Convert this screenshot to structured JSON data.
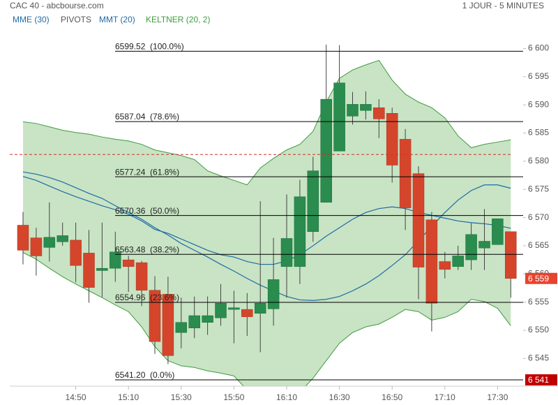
{
  "header": {
    "title": "CAC 40 - abcbourse.com",
    "period": "1 JOUR - 5 MINUTES"
  },
  "chart_data": {
    "type": "candlestick",
    "categories": [
      null,
      null,
      null,
      null,
      "14:50",
      null,
      null,
      null,
      "15:10",
      null,
      null,
      null,
      "15:30",
      null,
      null,
      null,
      "15:50",
      null,
      null,
      null,
      "16:10",
      null,
      null,
      null,
      "16:30",
      null,
      null,
      null,
      "16:50",
      null,
      null,
      null,
      "17:10",
      null,
      null,
      null,
      "17:30",
      null
    ],
    "ohlc": {
      "open": [
        6568.65,
        6566.4,
        6564.7,
        6565.7,
        6566.0,
        6563.7,
        6560.6,
        6561.0,
        6562.5,
        6562.0,
        6557.1,
        6556.4,
        6549.6,
        6550.4,
        6551.4,
        6552.2,
        6553.7,
        6553.7,
        6553.0,
        6553.8,
        6561.3,
        6561.3,
        6567.5,
        6572.7,
        6581.8,
        6588.0,
        6589.0,
        6589.5,
        6588.5,
        6583.9,
        6577.8,
        6569.6,
        6562.2,
        6561.3,
        6562.5,
        6564.6,
        6565.2,
        6567.5
      ],
      "high": [
        6571.0,
        6568.2,
        6572.7,
        6569.1,
        6569.1,
        6567.8,
        6569.1,
        6567.5,
        6563.2,
        6562.3,
        6559.6,
        6559.5,
        6555.8,
        6556.0,
        6556.0,
        6558.2,
        6557.0,
        6556.6,
        6572.9,
        6566.4,
        6574.1,
        6576.7,
        6580.8,
        6600.7,
        6600.6,
        6592.3,
        6592.4,
        6591.0,
        6589.5,
        6585.7,
        6579.1,
        6571.0,
        6563.9,
        6565.0,
        6569.0,
        6571.5,
        6569.8,
        6567.5
      ],
      "low": [
        6561.7,
        6559.7,
        6562.2,
        6565.0,
        6558.5,
        6554.9,
        6555.9,
        6558.6,
        6556.8,
        6554.3,
        6545.8,
        6544.0,
        6546.8,
        6548.6,
        6549.2,
        6550.8,
        6547.7,
        6549.0,
        6546.1,
        6550.8,
        6555.8,
        6558.2,
        6565.7,
        6572.7,
        6581.8,
        6586.5,
        6587.4,
        6584.1,
        6576.2,
        6567.8,
        6555.5,
        6549.8,
        6559.2,
        6560.7,
        6560.7,
        6560.7,
        6565.2,
        6555.8
      ],
      "close": [
        6564.2,
        6563.2,
        6566.5,
        6566.8,
        6561.5,
        6557.6,
        6561.0,
        6563.9,
        6561.3,
        6557.1,
        6548.0,
        6545.5,
        6551.4,
        6552.6,
        6552.6,
        6554.8,
        6554.0,
        6552.4,
        6554.8,
        6559.0,
        6566.3,
        6573.7,
        6578.3,
        6591.0,
        6593.9,
        6590.1,
        6590.1,
        6587.5,
        6579.3,
        6571.7,
        6561.2,
        6554.8,
        6560.8,
        6563.2,
        6567.0,
        6565.8,
        6569.8,
        6559.2
      ]
    },
    "up_color": "#2a8c4e",
    "down_color": "#d5452c",
    "overlays": [
      {
        "name": "MME (30)",
        "color": "#1f6aa5",
        "values": [
          6578.1,
          6577.7,
          6577.1,
          6576.3,
          6575.3,
          6574.3,
          6573.4,
          6572.1,
          6570.9,
          6569.7,
          6568.2,
          6566.9,
          6565.4,
          6564.2,
          6563.0,
          6561.7,
          6560.5,
          6559.2,
          6558.0,
          6557.0,
          6556.0,
          6555.4,
          6555.3,
          6555.5,
          6556.0,
          6557.0,
          6558.2,
          6559.7,
          6561.5,
          6563.4,
          6565.9,
          6568.4,
          6570.9,
          6573.1,
          6574.8,
          6575.8,
          6575.8,
          6575.2
        ]
      },
      {
        "name": "MMT (20)",
        "color": "#1f6aa5",
        "values": [
          6577.3,
          6576.6,
          6575.6,
          6574.6,
          6573.7,
          6572.9,
          6572.1,
          6571.4,
          6570.6,
          6569.4,
          6567.9,
          6567.2,
          6566.2,
          6565.2,
          6564.2,
          6563.4,
          6563.0,
          6562.2,
          6561.7,
          6561.7,
          6562.3,
          6563.4,
          6565.0,
          6566.7,
          6568.2,
          6569.7,
          6570.9,
          6571.6,
          6571.9,
          6571.6,
          6570.9,
          6570.4,
          6569.9,
          6569.4,
          6569.1,
          6568.9,
          6568.6,
          6568.1
        ]
      }
    ],
    "keltner": {
      "name": "KELTNER (20, 2)",
      "color": "#3f9a3f",
      "fill": "#c8e4c4",
      "upper": [
        6587.0,
        6586.7,
        6586.1,
        6585.5,
        6585.1,
        6584.8,
        6584.3,
        6583.9,
        6583.6,
        6583.0,
        6582.0,
        6581.5,
        6581.0,
        6580.3,
        6578.3,
        6577.4,
        6576.6,
        6575.8,
        6578.8,
        6580.5,
        6582.0,
        6583.0,
        6585.3,
        6590.5,
        6594.7,
        6596.2,
        6597.1,
        6597.9,
        6594.4,
        6591.9,
        6590.5,
        6589.5,
        6587.7,
        6584.5,
        6582.4,
        6583.0,
        6583.4,
        6583.8
      ],
      "lower": [
        6563.8,
        6562.6,
        6561.0,
        6559.5,
        6558.2,
        6557.0,
        6555.8,
        6554.5,
        6553.3,
        6550.6,
        6547.1,
        6544.6,
        6543.7,
        6543.4,
        6542.8,
        6542.4,
        6541.9,
        6539.4,
        6537.2,
        6536.6,
        6537.2,
        6539.0,
        6541.5,
        6544.6,
        6547.7,
        6549.6,
        6550.6,
        6551.1,
        6552.3,
        6553.7,
        6553.3,
        6551.8,
        6552.3,
        6553.3,
        6555.5,
        6555.1,
        6553.9,
        6550.8
      ]
    },
    "levels": {
      "name": "PIVOTS",
      "color": "#000000",
      "items": [
        {
          "value": 6599.52,
          "label": "6599.52  (100.0%)"
        },
        {
          "value": 6587.04,
          "label": "6587.04  (78.6%)"
        },
        {
          "value": 6577.24,
          "label": "6577.24  (61.8%)"
        },
        {
          "value": 6570.36,
          "label": "6570.36  (50.0%)"
        },
        {
          "value": 6563.48,
          "label": "6563.48  (38.2%)"
        },
        {
          "value": 6554.96,
          "label": "6554.96  (23.6%)"
        },
        {
          "value": 6541.2,
          "label": "6541.20  (0.0%)"
        }
      ]
    },
    "dashed_level": {
      "value": 6581.2,
      "color": "#d03030"
    },
    "price_tags": [
      {
        "value": 6559.2,
        "label": "6 559",
        "color": "#e8432e"
      },
      {
        "value": 6541.2,
        "label": "6 541",
        "color": "#c00000"
      }
    ],
    "ylim": [
      6538.6,
      6603.9
    ],
    "yticks": [
      {
        "value": 6545,
        "label": "6 545"
      },
      {
        "value": 6550,
        "label": "6 550"
      },
      {
        "value": 6555,
        "label": "6 555"
      },
      {
        "value": 6560,
        "label": "6 560"
      },
      {
        "value": 6565,
        "label": "6 565"
      },
      {
        "value": 6570,
        "label": "6 570"
      },
      {
        "value": 6575,
        "label": "6 575"
      },
      {
        "value": 6580,
        "label": "6 580"
      },
      {
        "value": 6585,
        "label": "6 585"
      },
      {
        "value": 6590,
        "label": "6 590"
      },
      {
        "value": 6595,
        "label": "6 595"
      },
      {
        "value": 6600,
        "label": "6 600"
      }
    ]
  }
}
